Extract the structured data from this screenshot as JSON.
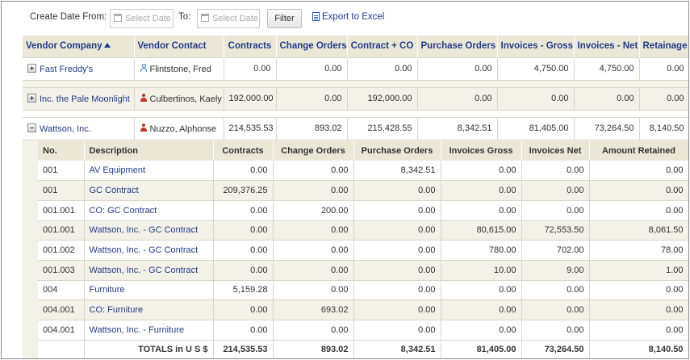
{
  "toolbar": {
    "create_date_from_label": "Create Date From:",
    "to_label": "To:",
    "date_placeholder": "Select Date",
    "filter_label": "Filter",
    "export_label": "Export to Excel"
  },
  "main_columns": [
    "Vendor Company",
    "Vendor Contact",
    "Contracts",
    "Change Orders",
    "Contract + CO",
    "Purchase Orders",
    "Invoices - Gross",
    "Invoices - Net",
    "Retainage"
  ],
  "vendors": [
    {
      "company": "Fast Freddy's",
      "contact": "Flintstone, Fred",
      "contact_icon": "person-outline-icon",
      "expanded": false,
      "values": [
        "0.00",
        "0.00",
        "0.00",
        "0.00",
        "4,750.00",
        "4,750.00",
        "0.00"
      ]
    },
    {
      "company": "Inc. the Pale Moonlight",
      "contact": "Culbertinos, Kaely",
      "contact_icon": "person-solid-icon",
      "expanded": false,
      "values": [
        "192,000.00",
        "0.00",
        "192,000.00",
        "0.00",
        "0.00",
        "0.00",
        "0.00"
      ]
    },
    {
      "company": "Wattson, Inc.",
      "contact": "Nuzzo, Alphonse",
      "contact_icon": "person-solid-icon",
      "expanded": true,
      "values": [
        "214,535.53",
        "893.02",
        "215,428.55",
        "8,342.51",
        "81,405.00",
        "73,264.50",
        "8,140.50"
      ]
    }
  ],
  "detail_columns": [
    "No.",
    "Description",
    "Contracts",
    "Change Orders",
    "Purchase Orders",
    "Invoices Gross",
    "Invoices Net",
    "Amount Retained"
  ],
  "detail_rows": [
    [
      "001",
      "AV Equipment",
      "0.00",
      "0.00",
      "8,342.51",
      "0.00",
      "0.00",
      "0.00"
    ],
    [
      "001",
      "GC Contract",
      "209,376.25",
      "0.00",
      "0.00",
      "0.00",
      "0.00",
      "0.00"
    ],
    [
      "001.001",
      "CO: GC Contract",
      "0.00",
      "200.00",
      "0.00",
      "0.00",
      "0.00",
      "0.00"
    ],
    [
      "001.001",
      "Wattson, Inc. - GC Contract",
      "0.00",
      "0.00",
      "0.00",
      "80,615.00",
      "72,553.50",
      "8,061.50"
    ],
    [
      "001.002",
      "Wattson, Inc. - GC Contract",
      "0.00",
      "0.00",
      "0.00",
      "780.00",
      "702.00",
      "78.00"
    ],
    [
      "001.003",
      "Wattson, Inc. - GC Contract",
      "0.00",
      "0.00",
      "0.00",
      "10.00",
      "9.00",
      "1.00"
    ],
    [
      "004",
      "Furniture",
      "5,159.28",
      "0.00",
      "0.00",
      "0.00",
      "0.00",
      "0.00"
    ],
    [
      "004.001",
      "CO: Furniture",
      "0.00",
      "693.02",
      "0.00",
      "0.00",
      "0.00",
      "0.00"
    ],
    [
      "004.001",
      "Wattson, Inc. - Furniture",
      "0.00",
      "0.00",
      "0.00",
      "0.00",
      "0.00",
      "0.00"
    ]
  ],
  "totals": {
    "label": "TOTALS in U S $",
    "values": [
      "214,535.53",
      "893.02",
      "8,342.51",
      "81,405.00",
      "73,264.50",
      "8,140.50"
    ]
  }
}
